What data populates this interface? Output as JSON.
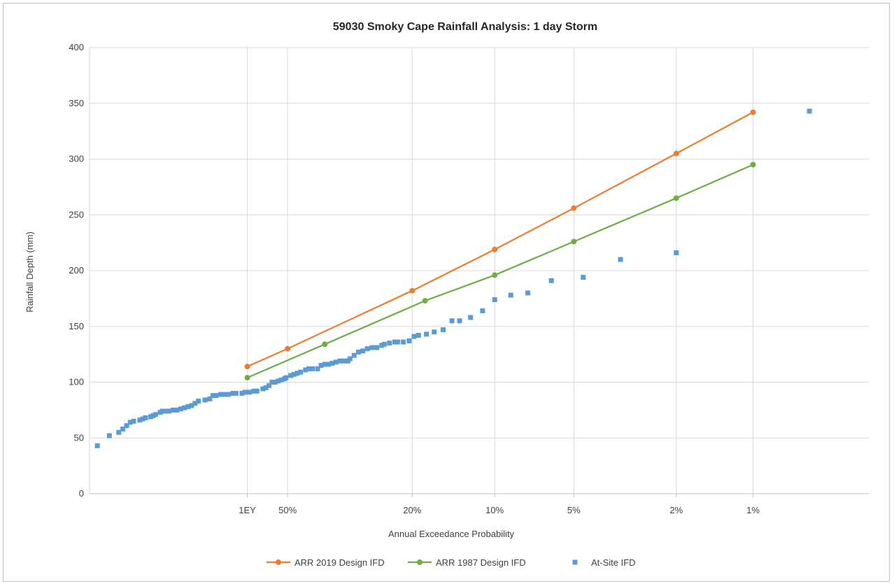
{
  "chart_data": {
    "type": "line",
    "title": "59030 Smoky Cape Rainfall Analysis: 1 day Storm",
    "xlabel": "Annual Exceedance Probability",
    "ylabel": "Rainfall Depth (mm)",
    "ylim": [
      0,
      400
    ],
    "yticks": [
      0,
      50,
      100,
      150,
      200,
      250,
      300,
      350,
      400
    ],
    "x_scale": "probability (Gumbel reduced variate)",
    "xticks": [
      {
        "label": "1EY",
        "aep": "63.2%"
      },
      {
        "label": "50%",
        "aep": "50%"
      },
      {
        "label": "20%",
        "aep": "20%"
      },
      {
        "label": "10%",
        "aep": "10%"
      },
      {
        "label": "5%",
        "aep": "5%"
      },
      {
        "label": "2%",
        "aep": "2%"
      },
      {
        "label": "1%",
        "aep": "1%"
      }
    ],
    "grid": true,
    "legend_position": "bottom",
    "series": [
      {
        "name": "ARR 2019 Design IFD",
        "color": "#ed7d31",
        "style": "line-marker",
        "points": [
          {
            "aep": "63.2%",
            "y": 114
          },
          {
            "aep": "50%",
            "y": 130
          },
          {
            "aep": "20%",
            "y": 182
          },
          {
            "aep": "10%",
            "y": 219
          },
          {
            "aep": "5%",
            "y": 256
          },
          {
            "aep": "2%",
            "y": 305
          },
          {
            "aep": "1%",
            "y": 342
          }
        ]
      },
      {
        "name": "ARR 1987 Design IFD",
        "color": "#70ad47",
        "style": "line-marker",
        "points": [
          {
            "aep": "63.2%",
            "y": 104
          },
          {
            "aep": "39%",
            "y": 134
          },
          {
            "aep": "18%",
            "y": 173
          },
          {
            "aep": "10%",
            "y": 196
          },
          {
            "aep": "5%",
            "y": 226
          },
          {
            "aep": "2%",
            "y": 265
          },
          {
            "aep": "1%",
            "y": 295
          }
        ]
      },
      {
        "name": "At-Site IFD",
        "color": "#5b9bd5",
        "style": "markers",
        "points": [
          {
            "aep": "98%",
            "y": 43
          },
          {
            "aep": "97%",
            "y": 52
          },
          {
            "aep": "96%",
            "y": 55
          },
          {
            "aep": "95.5%",
            "y": 58
          },
          {
            "aep": "95%",
            "y": 61
          },
          {
            "aep": "94.5%",
            "y": 64
          },
          {
            "aep": "94%",
            "y": 65
          },
          {
            "aep": "93%",
            "y": 66
          },
          {
            "aep": "92.5%",
            "y": 67
          },
          {
            "aep": "92%",
            "y": 68
          },
          {
            "aep": "91%",
            "y": 69
          },
          {
            "aep": "90.5%",
            "y": 70
          },
          {
            "aep": "90%",
            "y": 71
          },
          {
            "aep": "89%",
            "y": 73
          },
          {
            "aep": "88.5%",
            "y": 74
          },
          {
            "aep": "88%",
            "y": 74
          },
          {
            "aep": "87%",
            "y": 74
          },
          {
            "aep": "86%",
            "y": 75
          },
          {
            "aep": "85%",
            "y": 75
          },
          {
            "aep": "84%",
            "y": 76
          },
          {
            "aep": "83%",
            "y": 77
          },
          {
            "aep": "82%",
            "y": 78
          },
          {
            "aep": "81%",
            "y": 79
          },
          {
            "aep": "80%",
            "y": 81
          },
          {
            "aep": "79%",
            "y": 83
          },
          {
            "aep": "77%",
            "y": 84
          },
          {
            "aep": "75.5%",
            "y": 85
          },
          {
            "aep": "74.5%",
            "y": 88
          },
          {
            "aep": "73.5%",
            "y": 88
          },
          {
            "aep": "72%",
            "y": 89
          },
          {
            "aep": "71%",
            "y": 89
          },
          {
            "aep": "69.5%",
            "y": 89
          },
          {
            "aep": "68%",
            "y": 90
          },
          {
            "aep": "67%",
            "y": 90
          },
          {
            "aep": "65%",
            "y": 90
          },
          {
            "aep": "64%",
            "y": 91
          },
          {
            "aep": "62.5%",
            "y": 91
          },
          {
            "aep": "61%",
            "y": 92
          },
          {
            "aep": "60%",
            "y": 92
          },
          {
            "aep": "58%",
            "y": 94
          },
          {
            "aep": "57%",
            "y": 95
          },
          {
            "aep": "56%",
            "y": 97
          },
          {
            "aep": "55%",
            "y": 100
          },
          {
            "aep": "54%",
            "y": 100
          },
          {
            "aep": "53%",
            "y": 101
          },
          {
            "aep": "52%",
            "y": 102
          },
          {
            "aep": "51%",
            "y": 103
          },
          {
            "aep": "50.5%",
            "y": 104
          },
          {
            "aep": "49%",
            "y": 106
          },
          {
            "aep": "48%",
            "y": 107
          },
          {
            "aep": "47%",
            "y": 108
          },
          {
            "aep": "46%",
            "y": 109
          },
          {
            "aep": "44.5%",
            "y": 111
          },
          {
            "aep": "43.5%",
            "y": 112
          },
          {
            "aep": "42.5%",
            "y": 112
          },
          {
            "aep": "41%",
            "y": 112
          },
          {
            "aep": "40%",
            "y": 115
          },
          {
            "aep": "39%",
            "y": 116
          },
          {
            "aep": "38%",
            "y": 116
          },
          {
            "aep": "37%",
            "y": 117
          },
          {
            "aep": "36%",
            "y": 118
          },
          {
            "aep": "35%",
            "y": 119
          },
          {
            "aep": "34%",
            "y": 119
          },
          {
            "aep": "33%",
            "y": 119
          },
          {
            "aep": "32.5%",
            "y": 121
          },
          {
            "aep": "31.5%",
            "y": 124
          },
          {
            "aep": "30.5%",
            "y": 127
          },
          {
            "aep": "29.5%",
            "y": 128
          },
          {
            "aep": "28.5%",
            "y": 130
          },
          {
            "aep": "27.5%",
            "y": 131
          },
          {
            "aep": "26.5%",
            "y": 131
          },
          {
            "aep": "25.5%",
            "y": 133
          },
          {
            "aep": "25%",
            "y": 134
          },
          {
            "aep": "24%",
            "y": 135
          },
          {
            "aep": "23%",
            "y": 136
          },
          {
            "aep": "22.5%",
            "y": 136
          },
          {
            "aep": "21.5%",
            "y": 136
          },
          {
            "aep": "20.5%",
            "y": 137
          },
          {
            "aep": "19.7%",
            "y": 141
          },
          {
            "aep": "19%",
            "y": 142
          },
          {
            "aep": "17.8%",
            "y": 143
          },
          {
            "aep": "16.7%",
            "y": 145
          },
          {
            "aep": "15.5%",
            "y": 147
          },
          {
            "aep": "14.4%",
            "y": 155
          },
          {
            "aep": "13.5%",
            "y": 155
          },
          {
            "aep": "12.3%",
            "y": 158
          },
          {
            "aep": "11.1%",
            "y": 164
          },
          {
            "aep": "10%",
            "y": 174
          },
          {
            "aep": "8.7%",
            "y": 178
          },
          {
            "aep": "7.5%",
            "y": 180
          },
          {
            "aep": "6.1%",
            "y": 191
          },
          {
            "aep": "4.6%",
            "y": 194
          },
          {
            "aep": "3.3%",
            "y": 210
          },
          {
            "aep": "2%",
            "y": 216
          },
          {
            "aep": "0.6%",
            "y": 343
          }
        ]
      }
    ]
  }
}
